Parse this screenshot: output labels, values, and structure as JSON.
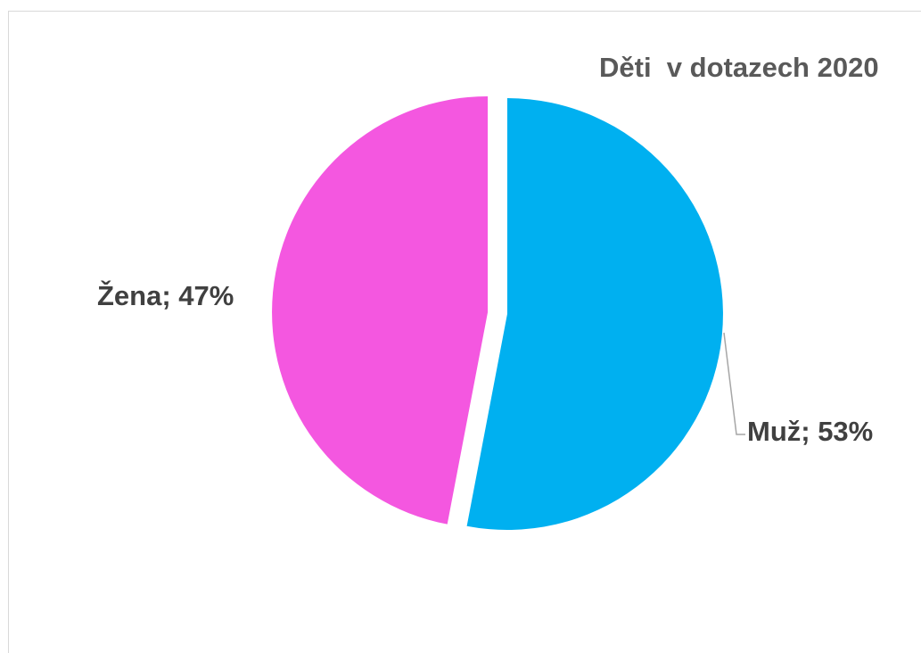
{
  "chart_data": {
    "type": "pie",
    "title": "Děti  v dotazech 2020",
    "categories": [
      "Muž",
      "Žena"
    ],
    "values": [
      53,
      47
    ],
    "colors": [
      "#00B0F0",
      "#F457E0"
    ],
    "data_labels": [
      "Muž; 53%",
      "Žena; 47%"
    ]
  }
}
